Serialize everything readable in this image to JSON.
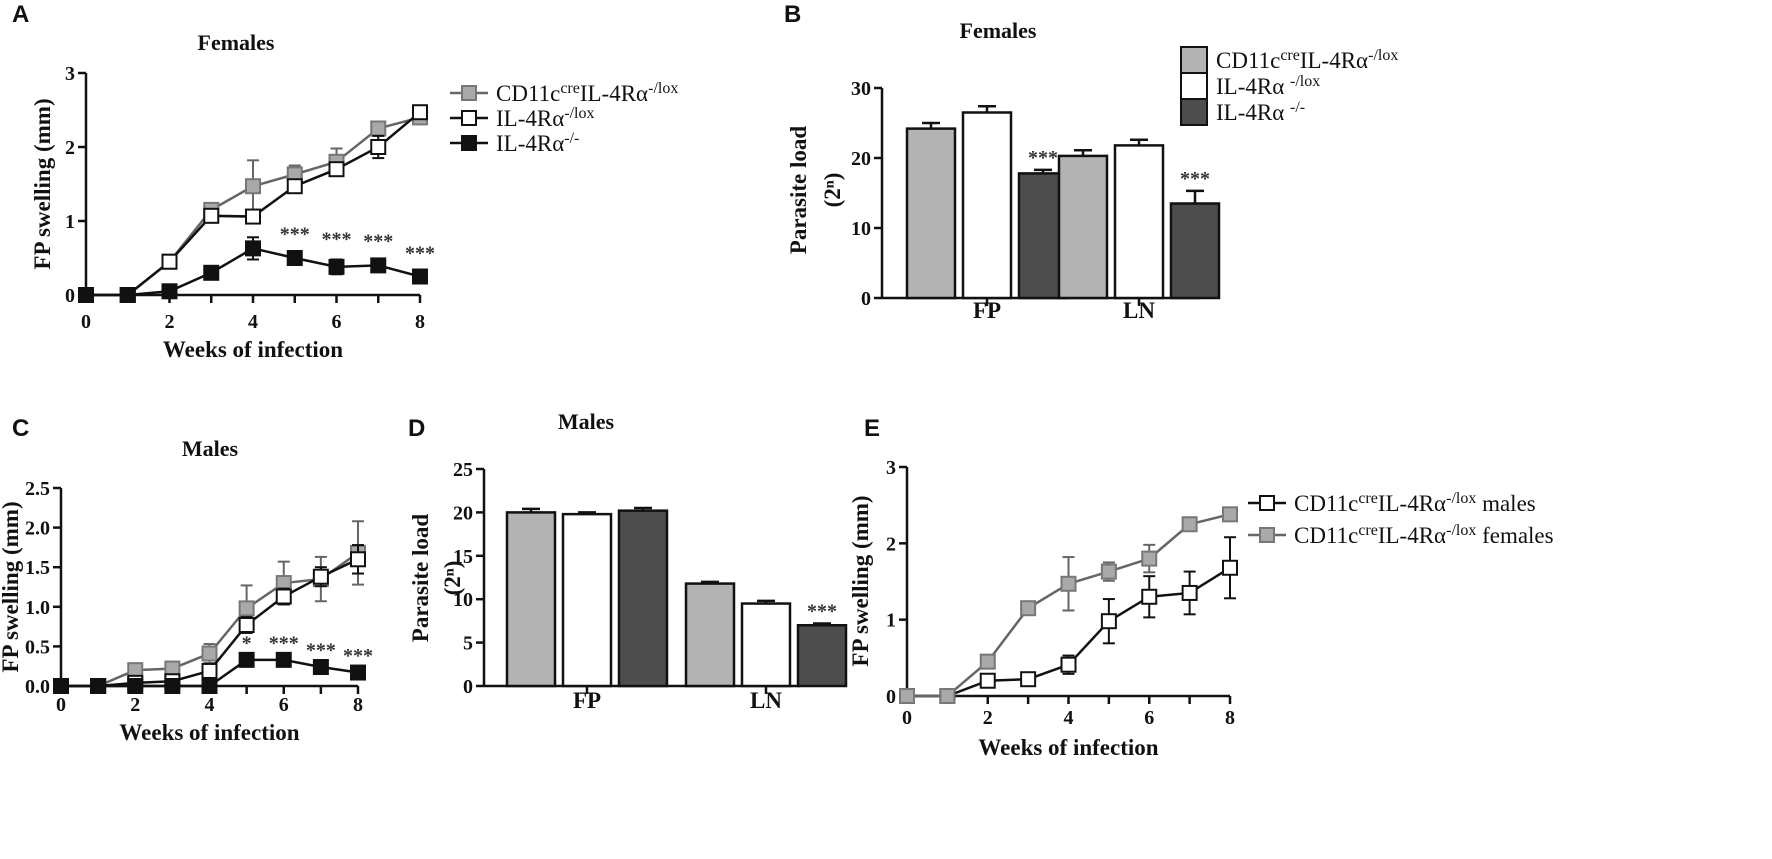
{
  "colors": {
    "grey": "#a9a9a9",
    "white": "#ffffff",
    "black": "#111111",
    "bar_dark": "#4d4d4d",
    "bar_light": "#b3b3b3"
  },
  "chart_data": [
    {
      "panel": "A",
      "type": "line",
      "title": "Females",
      "xlabel": "Weeks of infection",
      "ylabel": "FP swelling (mm)",
      "xlim": [
        0,
        8
      ],
      "ylim": [
        0,
        3
      ],
      "xticks": [
        "0",
        "2",
        "4",
        "6",
        "8"
      ],
      "yticks": [
        "0",
        "1",
        "2",
        "3"
      ],
      "series": [
        {
          "name": "CD11cᶜʳᵉIL-4Rα⁻/ˡᵒˣ",
          "legend_base": "CD11c",
          "legend_sup1": "cre",
          "legend_mid": "IL-4Rα",
          "legend_sup2": "-/lox",
          "style": "grey",
          "x": [
            0,
            1,
            2,
            3,
            4,
            5,
            6,
            7,
            8
          ],
          "y": [
            0,
            0,
            0.45,
            1.15,
            1.47,
            1.63,
            1.8,
            2.25,
            2.4
          ],
          "err": [
            0,
            0,
            0.05,
            0.08,
            0.35,
            0.12,
            0.18,
            0.08,
            0.06
          ]
        },
        {
          "name": "IL-4Rα-/lox",
          "legend_base": "IL-4Rα",
          "legend_sup1": "-/lox",
          "legend_mid": "",
          "legend_sup2": "",
          "style": "white",
          "x": [
            0,
            1,
            2,
            3,
            4,
            5,
            6,
            7,
            8
          ],
          "y": [
            0,
            0,
            0.45,
            1.07,
            1.06,
            1.47,
            1.7,
            2.0,
            2.47
          ],
          "err": [
            0,
            0,
            0.05,
            0.05,
            0.05,
            0.08,
            0.08,
            0.15,
            0.06
          ]
        },
        {
          "name": "IL-4Rα-/-",
          "legend_base": "IL-4Rα",
          "legend_sup1": "-/-",
          "legend_mid": "",
          "legend_sup2": "",
          "style": "black",
          "x": [
            0,
            1,
            2,
            3,
            4,
            5,
            6,
            7,
            8
          ],
          "y": [
            0,
            0,
            0.05,
            0.3,
            0.63,
            0.5,
            0.38,
            0.4,
            0.25
          ],
          "err": [
            0,
            0,
            0.02,
            0.08,
            0.15,
            0.05,
            0.1,
            0.05,
            0.04
          ]
        }
      ],
      "annotations": [
        {
          "x": 5,
          "text": "***"
        },
        {
          "x": 6,
          "text": "***"
        },
        {
          "x": 7,
          "text": "***"
        },
        {
          "x": 8,
          "text": "***"
        }
      ]
    },
    {
      "panel": "B",
      "type": "bar",
      "title": "Females",
      "xlabel": "",
      "ylabel": "Parasite load",
      "ylabel2": "(2ⁿ)",
      "ylim": [
        0,
        30
      ],
      "yticks": [
        "0",
        "10",
        "20",
        "30"
      ],
      "categories": [
        "FP",
        "LN"
      ],
      "series": [
        {
          "name": "CD11cᶜʳᵉIL-4Rα⁻/ˡᵒˣ",
          "legend_base": "CD11c",
          "legend_sup1": "cre",
          "legend_mid": "IL-4Rα",
          "legend_sup2": "-/lox",
          "style": "bar_light",
          "values": [
            24.2,
            20.3
          ],
          "err": [
            0.8,
            0.8
          ]
        },
        {
          "name": "IL-4Rα -/lox",
          "legend_base": "IL-4Rα ",
          "legend_sup1": "-/lox",
          "legend_mid": "",
          "legend_sup2": "",
          "style": "white",
          "values": [
            26.5,
            21.8
          ],
          "err": [
            0.9,
            0.8
          ]
        },
        {
          "name": "IL-4Rα -/-",
          "legend_base": "IL-4Rα ",
          "legend_sup1": "-/-",
          "legend_mid": "",
          "legend_sup2": "",
          "style": "bar_dark",
          "values": [
            17.8,
            13.5
          ],
          "err": [
            0.5,
            1.8
          ]
        }
      ],
      "annotations": [
        {
          "category": "FP",
          "series": 2,
          "text": "***"
        },
        {
          "category": "LN",
          "series": 2,
          "text": "***"
        }
      ]
    },
    {
      "panel": "C",
      "type": "line",
      "title": "Males",
      "xlabel": "Weeks of infection",
      "ylabel": "FP swelling (mm)",
      "xlim": [
        0,
        8
      ],
      "ylim": [
        0,
        2.5
      ],
      "xticks": [
        "0",
        "2",
        "4",
        "6",
        "8"
      ],
      "yticks": [
        "0.0",
        "0.5",
        "1.0",
        "1.5",
        "2.0",
        "2.5"
      ],
      "series": [
        {
          "name": "CD11c cre IL-4Rα -/lox",
          "style": "grey",
          "x": [
            0,
            1,
            2,
            3,
            4,
            5,
            6,
            7,
            8
          ],
          "y": [
            0,
            0,
            0.2,
            0.22,
            0.41,
            0.98,
            1.3,
            1.35,
            1.68
          ],
          "err": [
            0,
            0,
            0.06,
            0.08,
            0.12,
            0.29,
            0.27,
            0.28,
            0.4
          ]
        },
        {
          "name": "IL-4Rα -/lox",
          "style": "white",
          "x": [
            0,
            1,
            2,
            3,
            4,
            5,
            6,
            7,
            8
          ],
          "y": [
            0,
            0,
            0.04,
            0.06,
            0.19,
            0.77,
            1.13,
            1.38,
            1.6
          ],
          "err": [
            0,
            0,
            0.02,
            0.03,
            0.05,
            0.1,
            0.1,
            0.12,
            0.18
          ]
        },
        {
          "name": "IL-4Rα -/-",
          "style": "black",
          "x": [
            0,
            1,
            2,
            3,
            4,
            5,
            6,
            7,
            8
          ],
          "y": [
            0,
            0,
            0,
            0,
            0,
            0.33,
            0.33,
            0.24,
            0.17
          ],
          "err": [
            0,
            0,
            0,
            0,
            0,
            0.03,
            0.03,
            0.03,
            0.03
          ]
        }
      ],
      "annotations": [
        {
          "x": 5,
          "text": "*"
        },
        {
          "x": 6,
          "text": "***"
        },
        {
          "x": 7,
          "text": "***"
        },
        {
          "x": 8,
          "text": "***"
        }
      ]
    },
    {
      "panel": "D",
      "type": "bar",
      "title": "Males",
      "xlabel": "",
      "ylabel": "Parasite load",
      "ylabel2": "(2ⁿ)",
      "ylim": [
        0,
        25
      ],
      "yticks": [
        "0",
        "5",
        "10",
        "15",
        "20",
        "25"
      ],
      "categories": [
        "FP",
        "LN"
      ],
      "series": [
        {
          "name": "CD11c cre IL-4Rα -/lox",
          "style": "bar_light",
          "values": [
            20.0,
            11.8
          ],
          "err": [
            0.4,
            0.2
          ]
        },
        {
          "name": "IL-4Rα -/lox",
          "style": "white",
          "values": [
            19.8,
            9.5
          ],
          "err": [
            0.2,
            0.3
          ]
        },
        {
          "name": "IL-4Rα -/-",
          "style": "bar_dark",
          "values": [
            20.2,
            7.0
          ],
          "err": [
            0.3,
            0.2
          ]
        }
      ],
      "annotations": [
        {
          "category": "LN",
          "series": 2,
          "text": "***"
        }
      ]
    },
    {
      "panel": "E",
      "type": "line",
      "title": "",
      "xlabel": "Weeks of infection",
      "ylabel": "FP swelling (mm)",
      "xlim": [
        0,
        8
      ],
      "ylim": [
        0,
        3
      ],
      "xticks": [
        "0",
        "2",
        "4",
        "6",
        "8"
      ],
      "yticks": [
        "0",
        "1",
        "2",
        "3"
      ],
      "series": [
        {
          "name": "CD11c cre IL-4Rα -/lox males",
          "legend_base": "CD11c",
          "legend_sup1": "cre",
          "legend_mid": "IL-4Rα",
          "legend_sup2": "-/lox",
          "legend_tail": " males",
          "style": "white",
          "x": [
            0,
            1,
            2,
            3,
            4,
            5,
            6,
            7,
            8
          ],
          "y": [
            0,
            0,
            0.2,
            0.22,
            0.41,
            0.98,
            1.3,
            1.35,
            1.68
          ],
          "err": [
            0,
            0,
            0.06,
            0.08,
            0.12,
            0.29,
            0.27,
            0.28,
            0.4
          ]
        },
        {
          "name": "CD11c cre IL-4Rα -/lox females",
          "legend_base": "CD11c",
          "legend_sup1": "cre",
          "legend_mid": "IL-4Rα",
          "legend_sup2": "-/lox",
          "legend_tail": " females",
          "style": "grey",
          "x": [
            0,
            1,
            2,
            3,
            4,
            5,
            6,
            7,
            8
          ],
          "y": [
            0,
            0,
            0.45,
            1.15,
            1.47,
            1.63,
            1.8,
            2.25,
            2.38
          ],
          "err": [
            0,
            0,
            0.05,
            0.08,
            0.35,
            0.12,
            0.18,
            0.08,
            0.06
          ]
        }
      ],
      "annotations": []
    }
  ]
}
